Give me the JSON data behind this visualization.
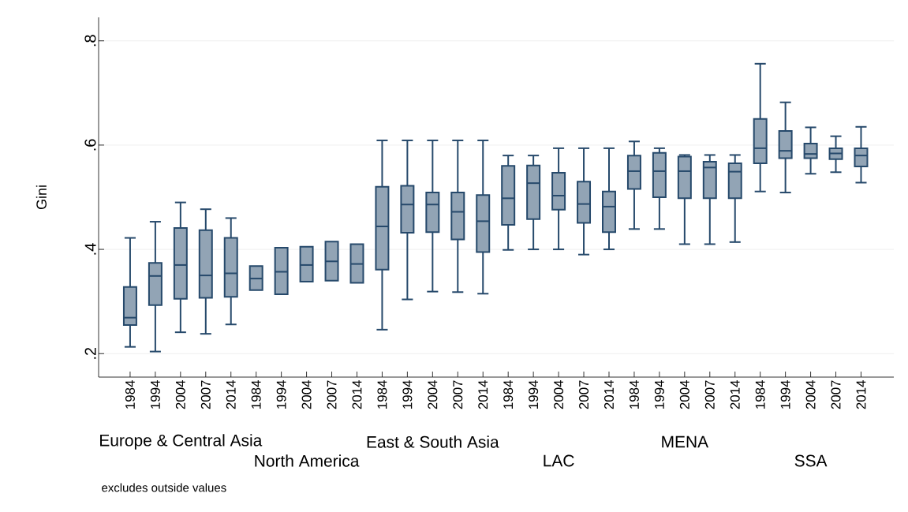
{
  "chart_data": {
    "type": "box",
    "ylabel": "Gini",
    "categories": [
      "1984",
      "1994",
      "2004",
      "2007",
      "2014",
      "1984",
      "1994",
      "2004",
      "2007",
      "2014",
      "1984",
      "1994",
      "2004",
      "2007",
      "2014",
      "1984",
      "1994",
      "2004",
      "2007",
      "2014",
      "1984",
      "1994",
      "2004",
      "2007",
      "2014",
      "1984",
      "1994",
      "2004",
      "2007",
      "2014"
    ],
    "series": [
      {
        "color": "#26496b",
        "boxes": [
          {
            "low": 0.213,
            "q1": 0.255,
            "median": 0.269,
            "q3": 0.328,
            "high": 0.422
          },
          {
            "low": 0.204,
            "q1": 0.293,
            "median": 0.349,
            "q3": 0.374,
            "high": 0.453
          },
          {
            "low": 0.241,
            "q1": 0.305,
            "median": 0.37,
            "q3": 0.441,
            "high": 0.49
          },
          {
            "low": 0.238,
            "q1": 0.307,
            "median": 0.35,
            "q3": 0.437,
            "high": 0.477
          },
          {
            "low": 0.256,
            "q1": 0.309,
            "median": 0.354,
            "q3": 0.422,
            "high": 0.46
          },
          {
            "low": 0.322,
            "q1": 0.322,
            "median": 0.344,
            "q3": 0.368,
            "high": 0.368
          },
          {
            "low": 0.314,
            "q1": 0.314,
            "median": 0.357,
            "q3": 0.403,
            "high": 0.403
          },
          {
            "low": 0.338,
            "q1": 0.338,
            "median": 0.37,
            "q3": 0.405,
            "high": 0.405
          },
          {
            "low": 0.34,
            "q1": 0.34,
            "median": 0.377,
            "q3": 0.415,
            "high": 0.415
          },
          {
            "low": 0.336,
            "q1": 0.336,
            "median": 0.372,
            "q3": 0.41,
            "high": 0.41
          },
          {
            "low": 0.246,
            "q1": 0.361,
            "median": 0.444,
            "q3": 0.52,
            "high": 0.609
          },
          {
            "low": 0.304,
            "q1": 0.432,
            "median": 0.486,
            "q3": 0.522,
            "high": 0.609
          },
          {
            "low": 0.319,
            "q1": 0.433,
            "median": 0.486,
            "q3": 0.509,
            "high": 0.609
          },
          {
            "low": 0.318,
            "q1": 0.419,
            "median": 0.472,
            "q3": 0.509,
            "high": 0.609
          },
          {
            "low": 0.315,
            "q1": 0.395,
            "median": 0.454,
            "q3": 0.504,
            "high": 0.609
          },
          {
            "low": 0.399,
            "q1": 0.447,
            "median": 0.498,
            "q3": 0.56,
            "high": 0.58
          },
          {
            "low": 0.4,
            "q1": 0.458,
            "median": 0.527,
            "q3": 0.561,
            "high": 0.58
          },
          {
            "low": 0.4,
            "q1": 0.476,
            "median": 0.503,
            "q3": 0.547,
            "high": 0.594
          },
          {
            "low": 0.39,
            "q1": 0.451,
            "median": 0.487,
            "q3": 0.53,
            "high": 0.594
          },
          {
            "low": 0.4,
            "q1": 0.433,
            "median": 0.482,
            "q3": 0.511,
            "high": 0.594
          },
          {
            "low": 0.439,
            "q1": 0.516,
            "median": 0.55,
            "q3": 0.58,
            "high": 0.607
          },
          {
            "low": 0.439,
            "q1": 0.5,
            "median": 0.55,
            "q3": 0.585,
            "high": 0.594
          },
          {
            "low": 0.41,
            "q1": 0.498,
            "median": 0.55,
            "q3": 0.578,
            "high": 0.581
          },
          {
            "low": 0.41,
            "q1": 0.498,
            "median": 0.557,
            "q3": 0.568,
            "high": 0.581
          },
          {
            "low": 0.414,
            "q1": 0.498,
            "median": 0.549,
            "q3": 0.565,
            "high": 0.581
          },
          {
            "low": 0.511,
            "q1": 0.565,
            "median": 0.594,
            "q3": 0.65,
            "high": 0.756
          },
          {
            "low": 0.509,
            "q1": 0.575,
            "median": 0.589,
            "q3": 0.627,
            "high": 0.682
          },
          {
            "low": 0.545,
            "q1": 0.575,
            "median": 0.583,
            "q3": 0.603,
            "high": 0.634
          },
          {
            "low": 0.548,
            "q1": 0.573,
            "median": 0.584,
            "q3": 0.594,
            "high": 0.617
          },
          {
            "low": 0.528,
            "q1": 0.559,
            "median": 0.58,
            "q3": 0.594,
            "high": 0.635
          }
        ]
      }
    ],
    "ylim": [
      0.155,
      0.845
    ],
    "yticks": [
      {
        "value": 0.2,
        "label": ".2"
      },
      {
        "value": 0.4,
        "label": ".4"
      },
      {
        "value": 0.6,
        "label": ".6"
      },
      {
        "value": 0.8,
        "label": ".8"
      }
    ],
    "grid": "y",
    "annotations": [
      "Europe & Central Asia",
      "North America",
      "East & South Asia",
      "LAC",
      "MENA",
      "SSA",
      "excludes outside values"
    ]
  }
}
